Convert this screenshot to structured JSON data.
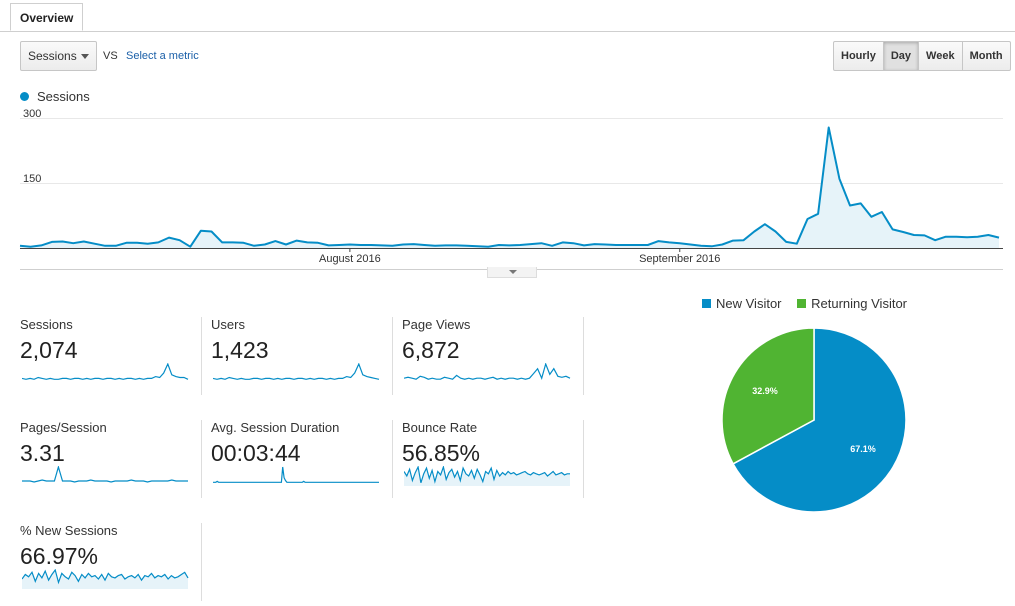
{
  "tabs": [
    {
      "label": "Overview"
    }
  ],
  "toolbar": {
    "metric_select": "Sessions",
    "vs_label": "VS",
    "select_metric_link": "Select a metric",
    "granularity": [
      "Hourly",
      "Day",
      "Week",
      "Month"
    ],
    "active_granularity": "Day"
  },
  "colors": {
    "accent": "#058dc7",
    "returning": "#50b432",
    "area_fill": "#e6f3f9"
  },
  "chart_data": [
    {
      "type": "area",
      "title": "",
      "series": [
        {
          "name": "Sessions",
          "values": [
            5,
            3,
            6,
            14,
            15,
            11,
            15,
            10,
            5,
            5,
            12,
            12,
            10,
            13,
            24,
            18,
            3,
            40,
            38,
            13,
            13,
            12,
            5,
            8,
            16,
            8,
            17,
            13,
            12,
            6,
            7,
            8,
            7,
            7,
            6,
            5,
            8,
            9,
            7,
            5,
            6,
            6,
            5,
            4,
            3,
            7,
            6,
            7,
            9,
            11,
            5,
            13,
            11,
            6,
            9,
            8,
            7,
            7,
            7,
            7,
            16,
            13,
            11,
            8,
            5,
            4,
            8,
            17,
            18,
            38,
            55,
            38,
            14,
            10,
            67,
            79,
            278,
            160,
            98,
            103,
            72,
            83,
            43,
            37,
            30,
            29,
            18,
            26,
            26,
            25,
            26,
            30,
            24
          ]
        }
      ],
      "x_tick_labels": [
        "August 2016",
        "September 2016"
      ],
      "y_tick_labels": [
        "300",
        "150"
      ],
      "ylim": [
        0,
        300
      ],
      "grid": true
    },
    {
      "type": "pie",
      "legend": [
        "New Visitor",
        "Returning Visitor"
      ],
      "legend_position": "top",
      "slices": [
        {
          "label": "New Visitor",
          "value": 67.1,
          "text": "67.1%",
          "color": "#058dc7"
        },
        {
          "label": "Returning Visitor",
          "value": 32.9,
          "text": "32.9%",
          "color": "#50b432"
        }
      ]
    }
  ],
  "metrics": [
    {
      "label": "Sessions",
      "value": "2,074",
      "spark": [
        4,
        3,
        4,
        3,
        5,
        4,
        3,
        4,
        3,
        3,
        4,
        4,
        3,
        4,
        4,
        3,
        4,
        3,
        4,
        4,
        3,
        4,
        4,
        3,
        4,
        3,
        4,
        4,
        3,
        4,
        3,
        4,
        4,
        6,
        5,
        10,
        20,
        8,
        6,
        5,
        5,
        3
      ],
      "fill": false
    },
    {
      "label": "Users",
      "value": "1,423",
      "spark": [
        4,
        3,
        4,
        3,
        5,
        4,
        3,
        4,
        3,
        3,
        4,
        4,
        3,
        4,
        4,
        3,
        4,
        3,
        4,
        4,
        3,
        4,
        4,
        3,
        4,
        3,
        4,
        4,
        3,
        4,
        3,
        4,
        4,
        6,
        5,
        10,
        20,
        8,
        6,
        5,
        4,
        3
      ],
      "fill": false
    },
    {
      "label": "Page Views",
      "value": "6,872",
      "spark": [
        4,
        5,
        4,
        3,
        6,
        5,
        3,
        4,
        3,
        3,
        5,
        4,
        3,
        7,
        4,
        3,
        4,
        3,
        4,
        4,
        3,
        4,
        5,
        3,
        4,
        3,
        4,
        4,
        3,
        4,
        3,
        4,
        9,
        14,
        4,
        19,
        8,
        14,
        6,
        5,
        6,
        4
      ],
      "fill": false
    },
    {
      "label": "Pages/Session",
      "value": "3.31",
      "spark": [
        4,
        4,
        4,
        3,
        4,
        5,
        4,
        4,
        4,
        18,
        4,
        4,
        4,
        3,
        4,
        4,
        4,
        5,
        4,
        4,
        4,
        4,
        3,
        4,
        4,
        4,
        4,
        5,
        4,
        4,
        4,
        3,
        4,
        4,
        4,
        4,
        4,
        5,
        4,
        4,
        4,
        4
      ],
      "fill": false
    },
    {
      "label": "Avg. Session Duration",
      "value": "00:03:44",
      "spark": [
        3,
        3,
        3,
        4,
        3,
        3,
        3,
        3,
        3,
        3,
        3,
        3,
        3,
        3,
        3,
        3,
        3,
        3,
        3,
        3,
        3,
        3,
        3,
        3,
        3,
        3,
        3,
        3,
        3,
        3,
        3,
        3,
        3,
        3,
        3,
        3,
        3,
        3,
        3,
        3,
        3,
        3,
        3,
        3,
        3,
        3,
        3,
        3,
        3,
        3,
        20,
        8,
        5,
        3,
        3,
        3,
        3,
        3,
        3,
        3,
        3,
        3,
        3,
        3,
        3,
        4,
        3,
        3,
        3,
        3,
        3,
        3,
        3,
        3,
        3,
        3,
        3,
        3,
        3,
        3,
        3,
        3,
        3,
        3,
        3,
        3,
        3,
        3,
        3,
        3,
        3,
        3,
        3,
        3,
        3,
        3,
        3,
        3,
        3,
        3,
        3,
        3,
        3,
        3,
        3,
        3,
        3,
        3,
        3,
        3,
        3,
        3,
        3,
        3,
        3,
        3,
        3,
        3,
        3,
        3
      ],
      "fill": false
    },
    {
      "label": "Bounce Rate",
      "value": "56.85%",
      "spark": [
        12,
        8,
        14,
        4,
        11,
        16,
        2,
        10,
        15,
        6,
        13,
        3,
        12,
        9,
        16,
        5,
        11,
        14,
        7,
        12,
        4,
        15,
        10,
        8,
        13,
        6,
        14,
        9,
        3,
        12,
        10,
        15,
        5,
        13,
        8,
        11,
        9,
        12,
        10,
        11,
        9,
        10,
        11,
        12,
        10,
        9,
        11,
        10,
        9,
        10,
        11,
        8,
        10,
        12,
        9,
        10,
        11,
        9,
        10,
        10
      ],
      "fill": true
    },
    {
      "label": "% New Sessions",
      "value": "66.97%",
      "spark": [
        8,
        12,
        10,
        14,
        6,
        13,
        9,
        15,
        7,
        12,
        16,
        5,
        13,
        10,
        8,
        14,
        11,
        6,
        12,
        9,
        13,
        10,
        11,
        8,
        12,
        7,
        13,
        10,
        9,
        11,
        12,
        8,
        10,
        11,
        9,
        12,
        7,
        11,
        10,
        13,
        9,
        11,
        10,
        12,
        8,
        11,
        9,
        10,
        12,
        14,
        9
      ],
      "fill": true
    }
  ]
}
